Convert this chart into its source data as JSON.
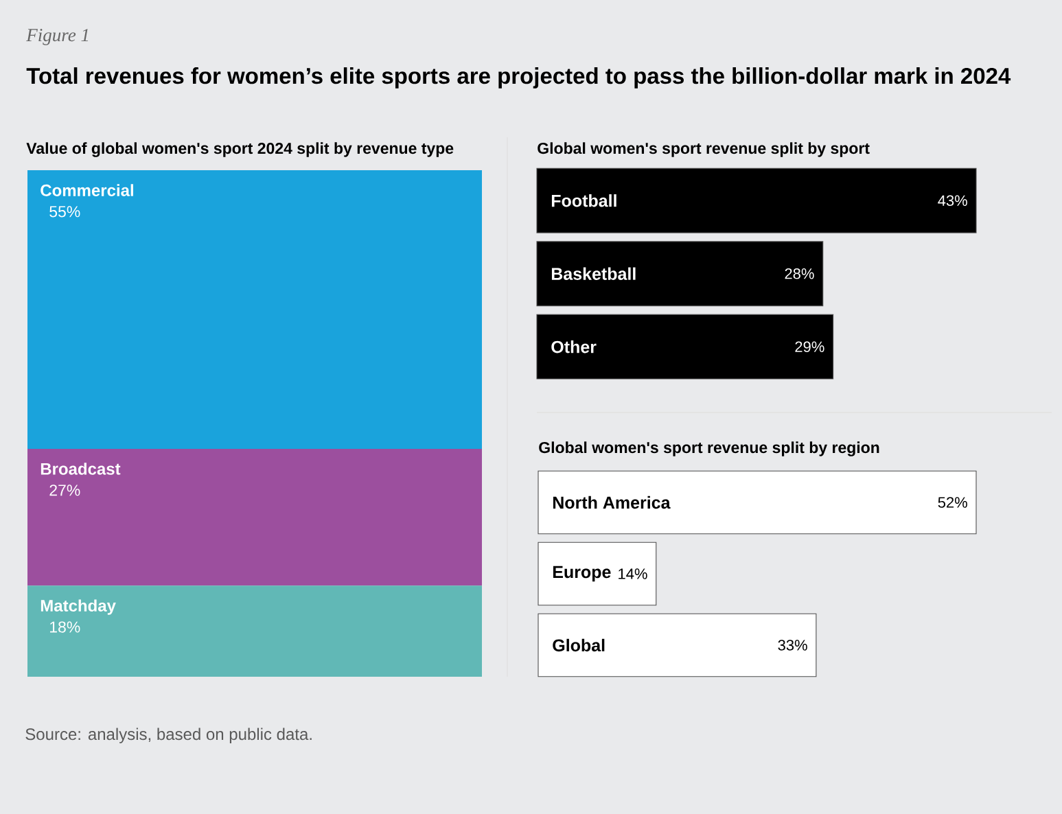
{
  "chart_data": [
    {
      "type": "other",
      "title": "Total revenues for women’s elite sports are projected to pass the billion-dollar mark in 2024",
      "annotations": [
        "Figure 1",
        "Source: analysis, based on public data."
      ]
    },
    {
      "type": "bar",
      "stacked": true,
      "title": "Value of global women's sport 2024 split by revenue type",
      "categories": [
        null
      ],
      "series": [
        {
          "name": "Matchday",
          "color": "#61b8b6",
          "values": [
            18
          ],
          "value_labels": [
            "18%"
          ]
        },
        {
          "name": "Broadcast",
          "color": "#9c4f9e",
          "values": [
            27
          ],
          "value_labels": [
            "27%"
          ]
        },
        {
          "name": "Commercial",
          "color": "#1aa3dc",
          "values": [
            55
          ],
          "value_labels": [
            "55%"
          ]
        }
      ]
    },
    {
      "type": "bar",
      "orientation": "horizontal",
      "title": "Global women's sport revenue split by sport",
      "categories": [
        "Football",
        "Basketball",
        "Other"
      ],
      "values": [
        43,
        28,
        29
      ],
      "value_labels": [
        "43%",
        "28%",
        "29%"
      ],
      "color": "#000000"
    },
    {
      "type": "bar",
      "orientation": "horizontal",
      "title": "Global women's sport revenue split by region",
      "categories": [
        "North America",
        "Europe",
        "Global"
      ],
      "values": [
        52,
        14,
        33
      ],
      "value_labels": [
        "52%",
        "14%",
        "33%"
      ],
      "color": "#ffffff"
    }
  ]
}
